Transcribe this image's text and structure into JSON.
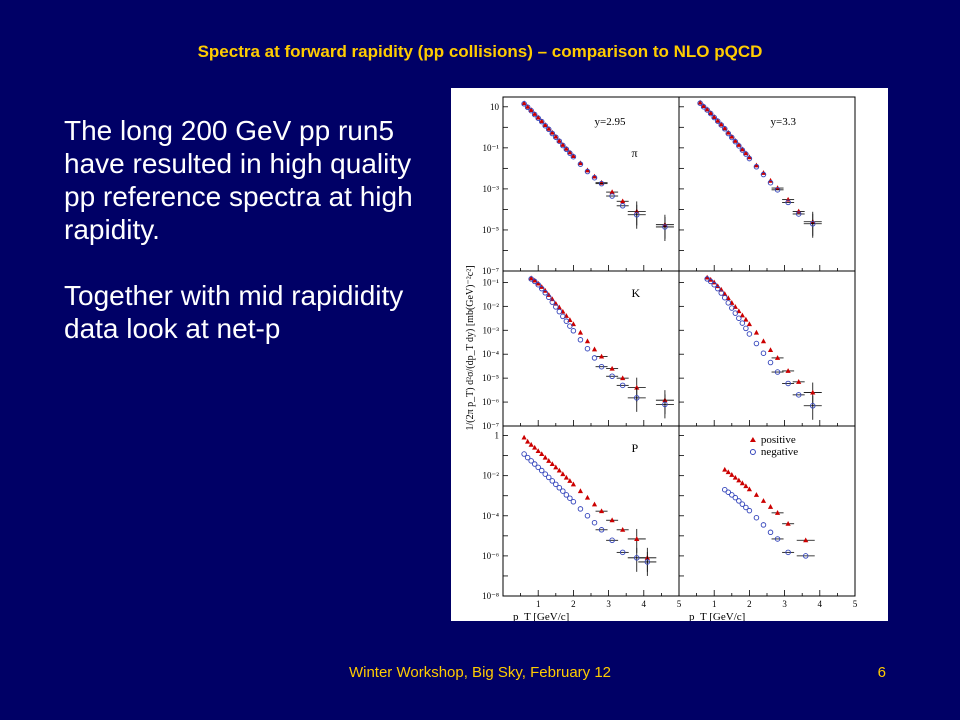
{
  "slide": {
    "title": "Spectra at forward rapidity (pp collisions) – comparison to NLO pQCD",
    "body_paragraphs": [
      "The long 200 GeV pp run5 have resulted in high quality pp reference spectra at high rapidity.",
      "Together with mid rapididity data look at net-p"
    ],
    "footer": "Winter Workshop, Big Sky, February 12",
    "slide_number": "6"
  },
  "chart_data": {
    "type": "scatter",
    "title": "",
    "xlabel": "p_T [GeV/c]",
    "ylabel": "1/(2π p_T) d²σ/(dp_T dy) [mb(GeV)⁻²c²]",
    "xlim": [
      0,
      5
    ],
    "x_ticks": [
      "1",
      "2",
      "3",
      "4",
      "5"
    ],
    "y_scale": "log",
    "legend": {
      "placement": "top-right of bottom-right panel",
      "entries": [
        {
          "label": "positive",
          "marker": "filled-triangle",
          "color": "#cc0000"
        },
        {
          "label": "negative",
          "marker": "open-circle",
          "color": "#3344bb"
        }
      ]
    },
    "panels": [
      {
        "row": 0,
        "col": 0,
        "particle": "π",
        "rapidity": "y=2.95",
        "ylim": [
          1e-07,
          30
        ],
        "y_ticks": [
          "10",
          "10⁻¹",
          "10⁻³",
          "10⁻⁵",
          "10⁻⁷"
        ],
        "series": [
          {
            "name": "positive",
            "x": [
              0.6,
              0.7,
              0.8,
              0.9,
              1.0,
              1.1,
              1.2,
              1.3,
              1.4,
              1.5,
              1.6,
              1.7,
              1.8,
              1.9,
              2.0,
              2.2,
              2.4,
              2.6,
              2.8,
              3.1,
              3.4,
              3.8,
              4.6
            ],
            "y": [
              15,
              10,
              7,
              4.5,
              3,
              2,
              1.3,
              0.85,
              0.55,
              0.35,
              0.22,
              0.14,
              0.09,
              0.06,
              0.04,
              0.018,
              0.008,
              0.004,
              0.002,
              0.0007,
              0.00025,
              8e-05,
              1.8e-05
            ]
          },
          {
            "name": "negative",
            "x": [
              0.6,
              0.7,
              0.8,
              0.9,
              1.0,
              1.1,
              1.2,
              1.3,
              1.4,
              1.5,
              1.6,
              1.7,
              1.8,
              1.9,
              2.0,
              2.2,
              2.4,
              2.6,
              2.8,
              3.1,
              3.4,
              3.8,
              4.6
            ],
            "y": [
              14,
              9.5,
              6.5,
              4.2,
              2.8,
              1.9,
              1.2,
              0.8,
              0.5,
              0.33,
              0.21,
              0.13,
              0.085,
              0.055,
              0.037,
              0.016,
              0.007,
              0.0035,
              0.0018,
              0.00045,
              0.00015,
              5.5e-05,
              1.4e-05
            ]
          }
        ]
      },
      {
        "row": 0,
        "col": 1,
        "particle": "",
        "rapidity": "y=3.3",
        "ylim": [
          1e-07,
          30
        ],
        "y_ticks": [],
        "series": [
          {
            "name": "positive",
            "x": [
              0.6,
              0.7,
              0.8,
              0.9,
              1.0,
              1.1,
              1.2,
              1.3,
              1.4,
              1.5,
              1.6,
              1.7,
              1.8,
              1.9,
              2.0,
              2.2,
              2.4,
              2.6,
              2.8,
              3.1,
              3.4,
              3.8
            ],
            "y": [
              16,
              11,
              7.5,
              5,
              3.2,
              2.1,
              1.4,
              0.9,
              0.55,
              0.35,
              0.22,
              0.14,
              0.085,
              0.055,
              0.035,
              0.014,
              0.006,
              0.0025,
              0.0011,
              0.0003,
              8e-05,
              2.5e-05
            ]
          },
          {
            "name": "negative",
            "x": [
              0.6,
              0.7,
              0.8,
              0.9,
              1.0,
              1.1,
              1.2,
              1.3,
              1.4,
              1.5,
              1.6,
              1.7,
              1.8,
              1.9,
              2.0,
              2.2,
              2.4,
              2.6,
              2.8,
              3.1,
              3.4,
              3.8
            ],
            "y": [
              15,
              10,
              7,
              4.7,
              3,
              2,
              1.3,
              0.85,
              0.5,
              0.32,
              0.2,
              0.125,
              0.078,
              0.05,
              0.03,
              0.012,
              0.005,
              0.002,
              0.0009,
              0.00022,
              6e-05,
              2e-05
            ]
          }
        ]
      },
      {
        "row": 1,
        "col": 0,
        "particle": "K",
        "rapidity": "",
        "ylim": [
          1e-07,
          0.3
        ],
        "y_ticks": [
          "10⁻¹",
          "10⁻²",
          "10⁻³",
          "10⁻⁴",
          "10⁻⁵",
          "10⁻⁶",
          "10⁻⁷"
        ],
        "series": [
          {
            "name": "positive",
            "x": [
              0.8,
              0.9,
              1.0,
              1.1,
              1.2,
              1.3,
              1.4,
              1.5,
              1.6,
              1.7,
              1.8,
              1.9,
              2.0,
              2.2,
              2.4,
              2.6,
              2.8,
              3.1,
              3.4,
              3.8,
              4.6
            ],
            "y": [
              0.15,
              0.12,
              0.09,
              0.065,
              0.045,
              0.03,
              0.02,
              0.013,
              0.009,
              0.006,
              0.004,
              0.0027,
              0.0018,
              0.0008,
              0.00035,
              0.00016,
              8e-05,
              2.5e-05,
              1e-05,
              4e-06,
              1.2e-06
            ]
          },
          {
            "name": "negative",
            "x": [
              0.8,
              0.9,
              1.0,
              1.1,
              1.2,
              1.3,
              1.4,
              1.5,
              1.6,
              1.7,
              1.8,
              1.9,
              2.0,
              2.2,
              2.4,
              2.6,
              2.8,
              3.1,
              3.4,
              3.8,
              4.6
            ],
            "y": [
              0.14,
              0.11,
              0.08,
              0.055,
              0.037,
              0.024,
              0.015,
              0.0095,
              0.006,
              0.0038,
              0.0024,
              0.0015,
              0.00095,
              0.0004,
              0.00017,
              7e-05,
              3e-05,
              1.2e-05,
              5e-06,
              1.5e-06,
              8e-07
            ]
          }
        ]
      },
      {
        "row": 1,
        "col": 1,
        "particle": "",
        "rapidity": "",
        "ylim": [
          1e-07,
          0.3
        ],
        "y_ticks": [],
        "series": [
          {
            "name": "positive",
            "x": [
              0.8,
              0.9,
              1.0,
              1.1,
              1.2,
              1.3,
              1.4,
              1.5,
              1.6,
              1.7,
              1.8,
              1.9,
              2.0,
              2.2,
              2.4,
              2.6,
              2.8,
              3.1,
              3.4,
              3.8
            ],
            "y": [
              0.16,
              0.13,
              0.1,
              0.07,
              0.05,
              0.033,
              0.022,
              0.014,
              0.0095,
              0.0063,
              0.0042,
              0.0028,
              0.0018,
              0.0008,
              0.00035,
              0.00015,
              7e-05,
              2e-05,
              7e-06,
              2.5e-06
            ]
          },
          {
            "name": "negative",
            "x": [
              0.8,
              0.9,
              1.0,
              1.1,
              1.2,
              1.3,
              1.4,
              1.5,
              1.6,
              1.7,
              1.8,
              1.9,
              2.0,
              2.2,
              2.4,
              2.6,
              2.8,
              3.1,
              3.4,
              3.8
            ],
            "y": [
              0.14,
              0.11,
              0.08,
              0.055,
              0.036,
              0.023,
              0.014,
              0.0085,
              0.0052,
              0.0032,
              0.002,
              0.0012,
              0.0007,
              0.00028,
              0.00011,
              4.5e-05,
              1.8e-05,
              6e-06,
              2e-06,
              7e-07
            ]
          }
        ]
      },
      {
        "row": 2,
        "col": 0,
        "particle": "P",
        "rapidity": "",
        "ylim": [
          1e-08,
          3
        ],
        "y_ticks": [
          "1",
          "10⁻²",
          "10⁻⁴",
          "10⁻⁶",
          "10⁻⁸"
        ],
        "series": [
          {
            "name": "positive",
            "x": [
              0.6,
              0.7,
              0.8,
              0.9,
              1.0,
              1.1,
              1.2,
              1.3,
              1.4,
              1.5,
              1.6,
              1.7,
              1.8,
              1.9,
              2.0,
              2.2,
              2.4,
              2.6,
              2.8,
              3.1,
              3.4,
              3.8,
              4.1
            ],
            "y": [
              0.8,
              0.5,
              0.35,
              0.25,
              0.17,
              0.12,
              0.08,
              0.055,
              0.038,
              0.026,
              0.018,
              0.012,
              0.008,
              0.0055,
              0.0037,
              0.0017,
              0.0008,
              0.00037,
              0.00017,
              6e-05,
              2e-05,
              7e-06,
              8e-07
            ]
          },
          {
            "name": "negative",
            "x": [
              0.6,
              0.7,
              0.8,
              0.9,
              1.0,
              1.1,
              1.2,
              1.3,
              1.4,
              1.5,
              1.6,
              1.7,
              1.8,
              1.9,
              2.0,
              2.2,
              2.4,
              2.6,
              2.8,
              3.1,
              3.4,
              3.8,
              4.1
            ],
            "y": [
              0.12,
              0.08,
              0.055,
              0.038,
              0.026,
              0.018,
              0.012,
              0.0082,
              0.0055,
              0.0037,
              0.0025,
              0.0017,
              0.0011,
              0.00075,
              0.0005,
              0.00022,
              0.0001,
              4.5e-05,
              2e-05,
              6e-06,
              1.5e-06,
              8e-07,
              5e-07
            ]
          }
        ]
      },
      {
        "row": 2,
        "col": 1,
        "particle": "",
        "rapidity": "",
        "ylim": [
          1e-08,
          3
        ],
        "y_ticks": [],
        "series": [
          {
            "name": "positive",
            "x": [
              1.3,
              1.4,
              1.5,
              1.6,
              1.7,
              1.8,
              1.9,
              2.0,
              2.2,
              2.4,
              2.6,
              2.8,
              3.1,
              3.6
            ],
            "y": [
              0.02,
              0.015,
              0.011,
              0.008,
              0.0058,
              0.0042,
              0.003,
              0.0021,
              0.0011,
              0.00055,
              0.00028,
              0.00014,
              4e-05,
              6e-06
            ]
          },
          {
            "name": "negative",
            "x": [
              1.3,
              1.4,
              1.5,
              1.6,
              1.7,
              1.8,
              1.9,
              2.0,
              2.2,
              2.4,
              2.6,
              2.8,
              3.1,
              3.6
            ],
            "y": [
              0.002,
              0.0015,
              0.0011,
              0.0008,
              0.00055,
              0.00038,
              0.00026,
              0.00018,
              8e-05,
              3.5e-05,
              1.5e-05,
              7e-06,
              1.5e-06,
              1e-06
            ]
          }
        ]
      }
    ]
  }
}
